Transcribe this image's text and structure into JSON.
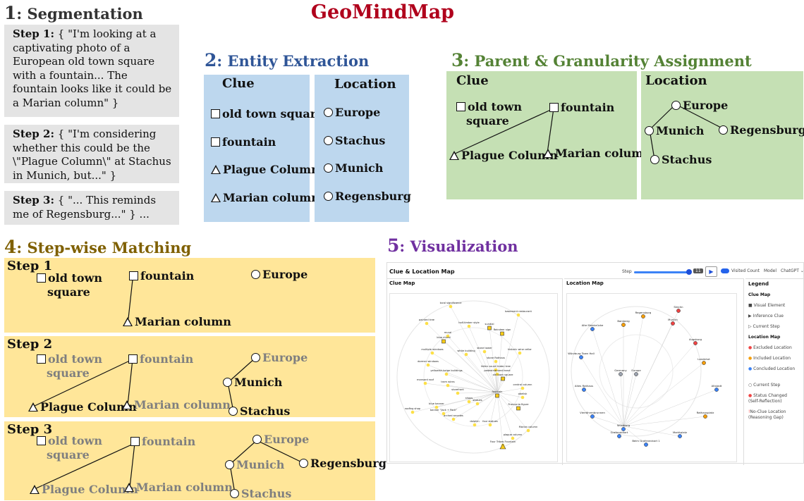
{
  "title": "GeoMindMap",
  "sections": {
    "s1": {
      "num": "1",
      "label": ": Segmentation"
    },
    "s2": {
      "num": "2",
      "label": ": Entity Extraction"
    },
    "s3": {
      "num": "3",
      "label": ": Parent & Granularity Assignment"
    },
    "s4": {
      "num": "4",
      "label": ": Step-wise Matching"
    },
    "s5": {
      "num": "5",
      "label": ": Visualization"
    }
  },
  "segmentation": [
    {
      "label": "Step 1:",
      "text": "{ \"I'm looking at a captivating photo of a European old town square with a fountain... The fountain looks like it could be a Marian column\" }"
    },
    {
      "label": "Step 2:",
      "text": "{ \"I'm considering whether this could be the \\\"Plague Column\\\" at Stachus in Munich, but...\" }"
    },
    {
      "label": "Step 3:",
      "text": "{ \"... This reminds me of Regensburg...\" } ..."
    }
  ],
  "extraction": {
    "clue_header": "Clue",
    "location_header": "Location",
    "clues": [
      "old town square",
      "fountain",
      "Plague Column",
      "Marian column"
    ],
    "locations": [
      "Europe",
      "Stachus",
      "Munich",
      "Regensburg"
    ]
  },
  "assignment": {
    "clue_header": "Clue",
    "location_header": "Location",
    "clue_old_1": "old town",
    "clue_old_2": "square",
    "clue_fountain": "fountain",
    "clue_plague": "Plague Column",
    "clue_marian": "Marian column",
    "loc_europe": "Europe",
    "loc_munich": "Munich",
    "loc_regensburg": "Regensburg",
    "loc_stachus": "Stachus"
  },
  "matching": {
    "step1": {
      "label": "Step 1",
      "old1": "old town",
      "old2": "square",
      "fountain": "fountain",
      "marian": "Marian column",
      "europe": "Europe"
    },
    "step2": {
      "label": "Step 2",
      "old1": "old town",
      "old2": "square",
      "fountain": "fountain",
      "plague": "Plague Column",
      "marian": "Marian column",
      "europe": "Europe",
      "munich": "Munich",
      "stachus": "Stachus"
    },
    "step3": {
      "label": "Step 3",
      "old1": "old town",
      "old2": "square",
      "fountain": "fountain",
      "plague": "Plague Column",
      "marian": "Marian column",
      "europe": "Europe",
      "munich": "Munich",
      "regensburg": "Regensburg",
      "stachus": "Stachus"
    }
  },
  "visualization": {
    "app_title": "Clue & Location Map",
    "step_label": "Step",
    "step_value": "11",
    "visited_label": "Visited Count",
    "model_label": "Model",
    "model_value": "ChatGPT",
    "clue_map_title": "Clue Map",
    "location_map_title": "Location Map",
    "legend_title": "Legend",
    "legend_clue_title": "Clue Map",
    "legend_clue_items": [
      "Visual Element",
      "Inference Clue",
      "Current Step"
    ],
    "legend_loc_title": "Location Map",
    "legend_loc_items": [
      "Excluded Location",
      "Included Location",
      "Concluded Location",
      "Current Step",
      "Status Changed (Self-Reflection)",
      "No-Clue Location (Reasoning Gap)"
    ],
    "clue_nodes": [
      "local significance",
      "basement restaurant",
      "painted tree",
      "half-timber style",
      "sundial",
      "Reindeer sign",
      "mural",
      "blue mural",
      "historic wine cellar",
      "multiple windows",
      "white building",
      "stone tower",
      "stone Rathaus",
      "dormer windows",
      "fallen count linden tree",
      "yellowish-beige buildings",
      "pedestrianized heart",
      "old town square",
      "mansard roof",
      "tram wires",
      "central column",
      "storefront",
      "fountain",
      "obelisk",
      "shops",
      "statues",
      "Franconia figure",
      "blue banner",
      "banner \"Jack + Pack\"",
      "roofing shop",
      "arched arcades",
      "dolphin",
      "four statues",
      "Marian column",
      "plague column",
      "Four Tribes Fountain"
    ],
    "location_nodes": [
      "Stechn",
      "Regensburg",
      "Munich",
      "Alte Mainbrücke",
      "Bamberg",
      "Augsburg",
      "Würzburg Town Hall",
      "Landshut",
      "Germany",
      "Europe",
      "Altes Rathaus",
      "Altstadt",
      "Vierröhrenbrunnen",
      "Rathausplatz",
      "Würzburg",
      "Grafeneckart",
      "Marktplatz",
      "Beim Grafeneckart 1"
    ]
  }
}
